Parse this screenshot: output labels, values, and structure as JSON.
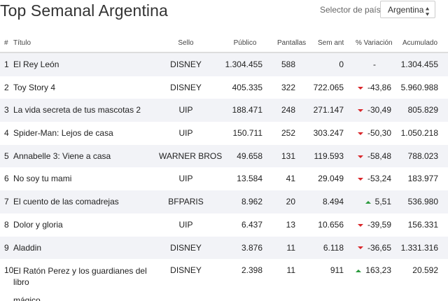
{
  "header": {
    "title": "Top Semanal Argentina",
    "selector_label": "Selector de país",
    "selector_value": "Argentina"
  },
  "columns": {
    "num": "#",
    "title": "Título",
    "sello": "Sello",
    "publico": "Público",
    "pantallas": "Pantallas",
    "sem_ant": "Sem ant",
    "variacion": "% Variación",
    "acumulado": "Acumulado"
  },
  "rows": [
    {
      "num": "1",
      "title": "El Rey León",
      "sello": "DISNEY",
      "publico": "1.304.455",
      "pantallas": "588",
      "sem_ant": "0",
      "variacion": "-",
      "trend": "none",
      "acumulado": "1.304.455"
    },
    {
      "num": "2",
      "title": "Toy Story 4",
      "sello": "DISNEY",
      "publico": "405.335",
      "pantallas": "322",
      "sem_ant": "722.065",
      "variacion": "-43,86",
      "trend": "down",
      "acumulado": "5.960.988"
    },
    {
      "num": "3",
      "title": "La vida secreta de tus mascotas 2",
      "sello": "UIP",
      "publico": "188.471",
      "pantallas": "248",
      "sem_ant": "271.147",
      "variacion": "-30,49",
      "trend": "down",
      "acumulado": "805.829"
    },
    {
      "num": "4",
      "title": "Spider-Man: Lejos de casa",
      "sello": "UIP",
      "publico": "150.711",
      "pantallas": "252",
      "sem_ant": "303.247",
      "variacion": "-50,30",
      "trend": "down",
      "acumulado": "1.050.218"
    },
    {
      "num": "5",
      "title": "Annabelle 3: Viene a casa",
      "sello": "WARNER BROS",
      "publico": "49.658",
      "pantallas": "131",
      "sem_ant": "119.593",
      "variacion": "-58,48",
      "trend": "down",
      "acumulado": "788.023"
    },
    {
      "num": "6",
      "title": "No soy tu mami",
      "sello": "UIP",
      "publico": "13.584",
      "pantallas": "41",
      "sem_ant": "29.049",
      "variacion": "-53,24",
      "trend": "down",
      "acumulado": "183.977"
    },
    {
      "num": "7",
      "title": "El cuento de las comadrejas",
      "sello": "BFPARIS",
      "publico": "8.962",
      "pantallas": "20",
      "sem_ant": "8.494",
      "variacion": "5,51",
      "trend": "up",
      "acumulado": "536.980"
    },
    {
      "num": "8",
      "title": "Dolor y gloria",
      "sello": "UIP",
      "publico": "6.437",
      "pantallas": "13",
      "sem_ant": "10.656",
      "variacion": "-39,59",
      "trend": "down",
      "acumulado": "156.331"
    },
    {
      "num": "9",
      "title": "Aladdin",
      "sello": "DISNEY",
      "publico": "3.876",
      "pantallas": "11",
      "sem_ant": "6.118",
      "variacion": "-36,65",
      "trend": "down",
      "acumulado": "1.331.316"
    },
    {
      "num": "10",
      "title": "El Ratón Perez y los guardianes del libro",
      "title_line2": "mágico",
      "sello": "DISNEY",
      "publico": "2.398",
      "pantallas": "11",
      "sem_ant": "911",
      "variacion": "163,23",
      "trend": "up",
      "acumulado": "20.592"
    }
  ],
  "colors": {
    "stripe": "#f2f3f7",
    "down": "#d9262a",
    "up": "#2a9a3c"
  }
}
